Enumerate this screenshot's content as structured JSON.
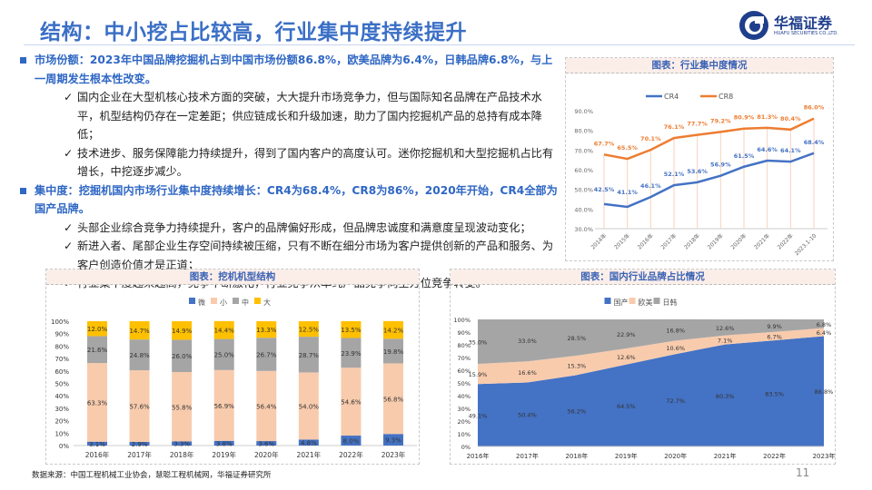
{
  "header": {
    "title": "结构：中小挖占比较高，行业集中度持续提升"
  },
  "logo": {
    "name": "华福证券",
    "english": "HUAFU SECURITIES CO.,LTD."
  },
  "body": {
    "points": [
      {
        "heading": "市场份额：2023年中国品牌挖掘机占到中国市场份额86.8%，欧美品牌为6.4%，日韩品牌6.8%，与上一周期发生根本性改变。",
        "subs": [
          "国内企业在大型机核心技术方面的突破，大大提升市场竞争力，但与国际知名品牌在产品技术水平，机型结构仍存在一定差距；供应链成长和升级加速，助力了国内挖掘机产品的总持有成本降低；",
          "技术进步、服务保障能力持续提升，得到了国内客户的高度认可。迷你挖掘机和大型挖掘机占比有增长，中挖逐步减少。"
        ]
      },
      {
        "heading": "集中度：挖掘机国内市场行业集中度持续增长：CR4为68.4%，CR8为86%，2020年开始，CR4全部为国产品牌。",
        "subs": [
          "头部企业综合竞争力持续提升，客户的品牌偏好形成，但品牌忠诚度和满意度呈现波动变化；",
          "新进入者、尾部企业生存空间持续被压缩，只有不断在细分市场为客户提供创新的产品和服务、为客户创造价值才是正道；",
          "行业集中度越来越高，竞争不断激化，行业竞争从单纯产品竞争向全方位竞争转变。"
        ]
      }
    ],
    "check": "✓"
  },
  "footer": {
    "source": "数据来源：中国工程机械工业协会，慧聪工程机械网，华福证券研究所",
    "page": "11"
  },
  "chart_data": [
    {
      "type": "line",
      "title": "图表：行业集中度情况",
      "categories": [
        "2014年",
        "2015年",
        "2016年",
        "2017年",
        "2018年",
        "2019年",
        "2020年",
        "2021年",
        "2022年",
        "2023.1-10"
      ],
      "series": [
        {
          "name": "CR4",
          "color": "#4472c4",
          "values": [
            42.5,
            41.1,
            46.1,
            52.1,
            53.6,
            56.9,
            61.5,
            64.6,
            64.1,
            68.4
          ]
        },
        {
          "name": "CR8",
          "color": "#ed7d31",
          "values": [
            67.7,
            65.5,
            70.1,
            76.1,
            77.7,
            79.2,
            80.9,
            81.3,
            80.4,
            86.0
          ]
        }
      ],
      "ylim": [
        30,
        90
      ],
      "yticks": [
        "30.0%",
        "40.0%",
        "50.0%",
        "60.0%",
        "70.0%",
        "80.0%",
        "90.0%"
      ],
      "legend": "top",
      "grid": false
    },
    {
      "type": "bar",
      "stacked": true,
      "title": "图表：挖机机型结构",
      "categories": [
        "2016年",
        "2017年",
        "2018年",
        "2019年",
        "2020年",
        "2021年",
        "2022年",
        "2023年"
      ],
      "series": [
        {
          "name": "微",
          "color": "#4472c4",
          "values": [
            3.1,
            2.9,
            3.3,
            3.8,
            3.6,
            4.8,
            8.0,
            9.3
          ]
        },
        {
          "name": "小",
          "color": "#f8cbad",
          "values": [
            63.3,
            57.6,
            55.8,
            56.9,
            56.4,
            54.0,
            54.6,
            56.8
          ]
        },
        {
          "name": "中",
          "color": "#a5a5a5",
          "values": [
            21.6,
            24.8,
            26.0,
            25.0,
            26.7,
            28.7,
            23.9,
            19.8
          ]
        },
        {
          "name": "大",
          "color": "#ffc000",
          "values": [
            12.0,
            14.7,
            14.9,
            14.4,
            13.3,
            12.5,
            13.5,
            14.2
          ]
        }
      ],
      "ylim": [
        0,
        100
      ],
      "yticks": [
        "0%",
        "10%",
        "20%",
        "30%",
        "40%",
        "50%",
        "60%",
        "70%",
        "80%",
        "90%",
        "100%"
      ],
      "legend": "top"
    },
    {
      "type": "area",
      "stacked": true,
      "title": "图表：国内行业品牌占比情况",
      "categories": [
        "2016年",
        "2017年",
        "2018年",
        "2019年",
        "2020年",
        "2021年",
        "2022年",
        "2023年"
      ],
      "series": [
        {
          "name": "国产",
          "color": "#4472c4",
          "values": [
            49.1,
            50.4,
            56.2,
            64.5,
            72.7,
            80.3,
            83.5,
            86.8
          ]
        },
        {
          "name": "欧美",
          "color": "#f8cbad",
          "values": [
            15.9,
            16.6,
            15.3,
            12.6,
            10.6,
            7.1,
            6.7,
            6.4
          ]
        },
        {
          "name": "日韩",
          "color": "#a5a5a5",
          "values": [
            35.0,
            33.0,
            28.5,
            22.9,
            16.8,
            12.6,
            9.9,
            6.8
          ]
        }
      ],
      "ylim": [
        0,
        100
      ],
      "yticks": [
        "0%",
        "10%",
        "20%",
        "30%",
        "40%",
        "50%",
        "60%",
        "70%",
        "80%",
        "90%",
        "100%"
      ],
      "legend": "top"
    }
  ]
}
